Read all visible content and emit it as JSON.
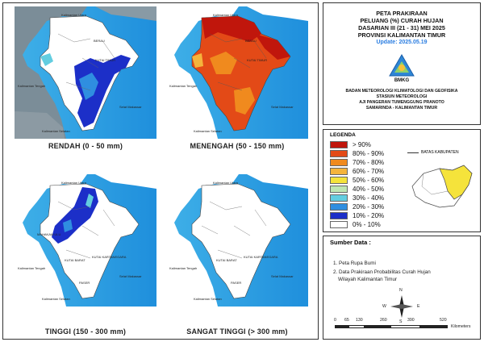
{
  "title": {
    "line1": "PETA PRAKIRAAN",
    "line2": "PELUANG (%) CURAH HUJAN",
    "line3": "DASARIAN III (21 - 31) MEI 2025",
    "line4": "PROVINSI KALIMANTAN TIMUR",
    "update": "Update: 2025.05.19"
  },
  "logo_text": "BMKG",
  "agency": {
    "line1": "BADAN METEOROLOGI KLIMATOLOGI DAN GEOFISIKA",
    "line2": "STASIUN METEOROLOGI",
    "line3": "AJI PANGERAN TUMENGGUNG PRANOTO",
    "line4": "SAMARINDA - KALIMANTAN TIMUR"
  },
  "panels": [
    {
      "label": "RENDAH (0 - 50 mm)"
    },
    {
      "label": "MENENGAH (50 - 150 mm)"
    },
    {
      "label": "TINGGI (150 - 300 mm)"
    },
    {
      "label": "SANGAT TINGGI (> 300 mm)"
    }
  ],
  "map_labels": {
    "kaltara": "Kalimantan Utara",
    "kalteng": "Kalimantan Tengah",
    "kalsel": "Kalimantan Selatan",
    "selat": "Selat Makassar",
    "berau": "BERAU",
    "kutim": "KUTAI TIMUR",
    "mahulu": "MAHAKAM ULU",
    "kubar": "KUTAI BARAT",
    "kukar": "KUTAI KARTANEGARA",
    "paser": "PASER"
  },
  "legend": {
    "title": "LEGENDA",
    "boundary_label": "BATAS KABUPATEN",
    "classes": [
      {
        "label": "> 90%",
        "color": "#c0160c"
      },
      {
        "label": "80% - 90%",
        "color": "#e34a17"
      },
      {
        "label": "70% - 80%",
        "color": "#f08a1e"
      },
      {
        "label": "60% - 70%",
        "color": "#f5b43c"
      },
      {
        "label": "50% - 60%",
        "color": "#f5e33b"
      },
      {
        "label": "40% - 50%",
        "color": "#bfe6b3"
      },
      {
        "label": "30% - 40%",
        "color": "#63cde0"
      },
      {
        "label": "20% - 30%",
        "color": "#2f8ee0"
      },
      {
        "label": "10% - 20%",
        "color": "#1c2fc8"
      },
      {
        "label": "0% - 10%",
        "color": "#ffffff"
      }
    ]
  },
  "sources": {
    "title": "Sumber Data :",
    "items": [
      "1. Peta Rupa Bumi",
      "2. Data Prakiraan Probabilitas Curah Hujan",
      "Wilayah Kalimantan Timur"
    ]
  },
  "compass": {
    "n": "N",
    "s": "S",
    "e": "E",
    "w": "W"
  },
  "scale": {
    "ticks": [
      "0",
      "65",
      "130",
      "260",
      "390",
      "520"
    ],
    "unit": "Kilometers"
  }
}
